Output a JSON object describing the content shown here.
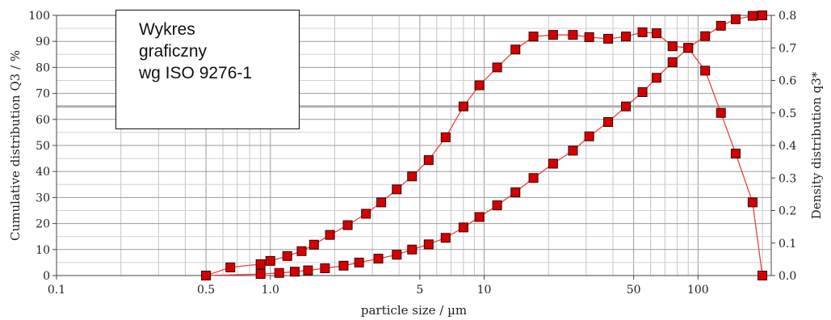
{
  "chart_data": {
    "type": "line",
    "title": "",
    "xlabel": "particle size / µm",
    "ylabel_left": "Cumulative distribution Q3 / %",
    "ylabel_right": "Density distribution q3*",
    "x_scale": "log",
    "xlim": [
      0.1,
      220
    ],
    "ylim_left": [
      0,
      100
    ],
    "ylim_right": [
      0,
      0.8
    ],
    "grid": true,
    "x_tick_labels": [
      {
        "value": 0.1,
        "label": "0.1"
      },
      {
        "value": 0.5,
        "label": "0.5"
      },
      {
        "value": 1,
        "label": "1.0"
      },
      {
        "value": 5,
        "label": "5"
      },
      {
        "value": 10,
        "label": "10"
      },
      {
        "value": 50,
        "label": "50"
      },
      {
        "value": 100,
        "label": "100"
      }
    ],
    "y_left_ticks": [
      "0",
      "10",
      "20",
      "30",
      "40",
      "50",
      "60",
      "70",
      "80",
      "90",
      "100"
    ],
    "y_right_ticks": [
      "0.0",
      "0.1",
      "0.2",
      "0.3",
      "0.4",
      "0.5",
      "0.6",
      "0.7",
      "0.8"
    ],
    "reference_line_left": 65,
    "annotation": [
      "Wykres",
      "graficzny",
      "wg ISO 9276-1"
    ],
    "series": [
      {
        "axis": "left",
        "color": "#e8423f",
        "marker_color": "#d40000",
        "x": [
          0.5,
          0.9,
          1.1,
          1.3,
          1.5,
          1.8,
          2.2,
          2.6,
          3.2,
          3.9,
          4.6,
          5.5,
          6.6,
          8.0,
          9.5,
          11.5,
          14,
          17,
          21,
          26,
          31,
          38,
          46,
          55,
          64,
          76,
          90,
          108,
          128,
          150,
          180,
          200
        ],
        "y": [
          0,
          0.6,
          1,
          1.5,
          2,
          2.8,
          3.8,
          5,
          6.5,
          8,
          10,
          12,
          14.5,
          18.5,
          22.5,
          27,
          32,
          37.5,
          43,
          48,
          53.5,
          59,
          65,
          70.5,
          76,
          82,
          87.5,
          92,
          96,
          98.5,
          99.8,
          100
        ]
      },
      {
        "axis": "right",
        "color": "#e8423f",
        "marker_color": "#d40000",
        "x": [
          0.5,
          0.65,
          0.9,
          1.0,
          1.2,
          1.4,
          1.6,
          1.9,
          2.3,
          2.8,
          3.3,
          3.9,
          4.6,
          5.5,
          6.6,
          8.0,
          9.5,
          11.5,
          14,
          17,
          21,
          26,
          31,
          38,
          46,
          55,
          64,
          76,
          90,
          108,
          128,
          150,
          180,
          200
        ],
        "y": [
          0,
          0.025,
          0.035,
          0.045,
          0.06,
          0.075,
          0.095,
          0.125,
          0.155,
          0.19,
          0.225,
          0.265,
          0.305,
          0.355,
          0.425,
          0.52,
          0.585,
          0.64,
          0.695,
          0.735,
          0.74,
          0.74,
          0.733,
          0.728,
          0.735,
          0.748,
          0.745,
          0.705,
          0.7,
          0.63,
          0.5,
          0.375,
          0.225,
          0.0
        ]
      }
    ]
  }
}
